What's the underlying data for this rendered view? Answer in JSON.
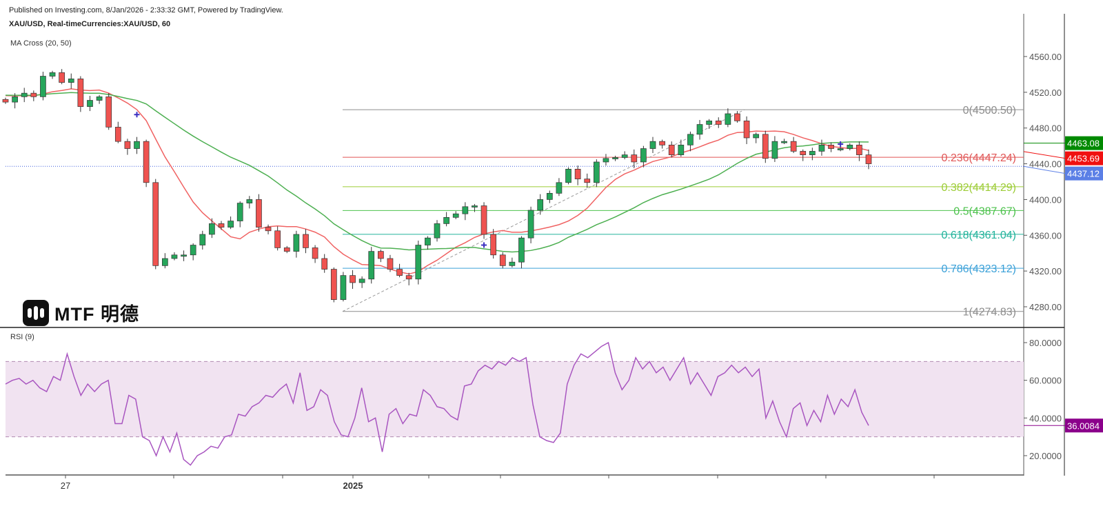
{
  "header": {
    "published": "Published on Investing.com, 8/Jan/2026 - 2:33:32 GMT, Powered by TradingView.",
    "symbol": "XAU/USD, Real-timeCurrencies:XAU/USD, 60"
  },
  "logo": {
    "text": "MTF 明德"
  },
  "chart_data": {
    "type": "candlestick",
    "title": "XAU/USD, Real-timeCurrencies:XAU/USD, 60",
    "indicator_label": "MA Cross (20, 50)",
    "ylim": [
      4250,
      4585
    ],
    "y_ticks": [
      "4560.00",
      "4520.00",
      "4480.00",
      "4440.00",
      "4400.00",
      "4360.00",
      "4320.00",
      "4280.00"
    ],
    "y_tick_values": [
      4560,
      4520,
      4480,
      4440,
      4400,
      4360,
      4320,
      4280
    ],
    "x_ticks": [
      "27",
      "",
      "",
      "2025",
      "",
      "",
      "",
      "",
      "",
      ""
    ],
    "closes": [
      4509,
      4515,
      4519,
      4515,
      4538,
      4542,
      4531,
      4535,
      4504,
      4511,
      4515,
      4481,
      4465,
      4457,
      4465,
      4419,
      4326,
      4334,
      4338,
      4338,
      4349,
      4361,
      4373,
      4369,
      4376,
      4396,
      4400,
      4369,
      4365,
      4346,
      4342,
      4361,
      4346,
      4334,
      4322,
      4288,
      4315,
      4307,
      4311,
      4342,
      4334,
      4322,
      4315,
      4311,
      4349,
      4357,
      4373,
      4380,
      4384,
      4392,
      4393,
      4361,
      4338,
      4326,
      4330,
      4357,
      4388,
      4400,
      4407,
      4419,
      4434,
      4423,
      4419,
      4442,
      4446,
      4447,
      4450,
      4442,
      4457,
      4465,
      4461,
      4450,
      4461,
      4473,
      4484,
      4488,
      4484,
      4496,
      4488,
      4469,
      4473,
      4446,
      4465,
      4465,
      4454,
      4450,
      4454,
      4461,
      4457,
      4457,
      4461,
      4450,
      4440
    ],
    "ma_fast_color": "#f06262",
    "ma_slow_color": "#4caf50",
    "up_color": "#26a65b",
    "down_color": "#ef5350",
    "cross_markers": [
      {
        "index": 14,
        "value": 4495
      },
      {
        "index": 51,
        "value": 4349
      },
      {
        "index": 89,
        "value": 4462
      }
    ],
    "fibonacci": {
      "levels": [
        {
          "label": "0(4500.50)",
          "value": 4500.5,
          "color": "#8c8c8c"
        },
        {
          "label": "0.236(4447.24)",
          "value": 4447.24,
          "color": "#e05555"
        },
        {
          "label": "0.382(4414.29)",
          "value": 4414.29,
          "color": "#9ccc35"
        },
        {
          "label": "0.5(4387.67)",
          "value": 4387.67,
          "color": "#4cc24c"
        },
        {
          "label": "0.618(4361.04)",
          "value": 4361.04,
          "color": "#20b29a"
        },
        {
          "label": "0.786(4323.12)",
          "value": 4323.12,
          "color": "#3aa0d8"
        },
        {
          "label": "1(4274.83)",
          "value": 4274.83,
          "color": "#8c8c8c"
        }
      ],
      "trend_from": 4274.83,
      "trend_to": 4500.5
    },
    "price_labels": [
      {
        "text": "4463.08",
        "value": 4463.08,
        "color": "#008a00"
      },
      {
        "text": "4453.69",
        "value": 4453.69,
        "color": "#f01010"
      },
      {
        "text": "4437.12",
        "value": 4437.12,
        "color": "#5b7fe6"
      }
    ],
    "current_price": 4437.12,
    "rsi": {
      "label": "RSI (9)",
      "ylim": [
        10,
        85
      ],
      "y_ticks": [
        "80.0000",
        "60.0000",
        "40.0000",
        "20.0000"
      ],
      "y_tick_values": [
        80,
        60,
        40,
        20
      ],
      "band": [
        30,
        70
      ],
      "color": "#a855c0",
      "last_label": "36.0084",
      "last_color": "#8b008b",
      "values": [
        58,
        60,
        61,
        58,
        60,
        56,
        54,
        62,
        60,
        74,
        62,
        52,
        58,
        54,
        58,
        60,
        37,
        37,
        52,
        50,
        30,
        28,
        20,
        30,
        22,
        32,
        18,
        15,
        20,
        22,
        25,
        24,
        30,
        31,
        42,
        41,
        46,
        48,
        52,
        51,
        55,
        58,
        48,
        64,
        44,
        46,
        55,
        52,
        38,
        31,
        30,
        40,
        56,
        38,
        40,
        22,
        42,
        45,
        37,
        42,
        41,
        55,
        52,
        46,
        45,
        41,
        39,
        57,
        58,
        65,
        68,
        66,
        70,
        68,
        72,
        70,
        72,
        47,
        30,
        28,
        27,
        32,
        58,
        68,
        74,
        72,
        75,
        78,
        80,
        64,
        55,
        60,
        72,
        66,
        70,
        64,
        67,
        60,
        66,
        72,
        58,
        64,
        58,
        52,
        62,
        64,
        68,
        64,
        67,
        62,
        66,
        40,
        49,
        38,
        30,
        45,
        48,
        36,
        44,
        38,
        52,
        42,
        50,
        46,
        55,
        43,
        36
      ]
    }
  }
}
